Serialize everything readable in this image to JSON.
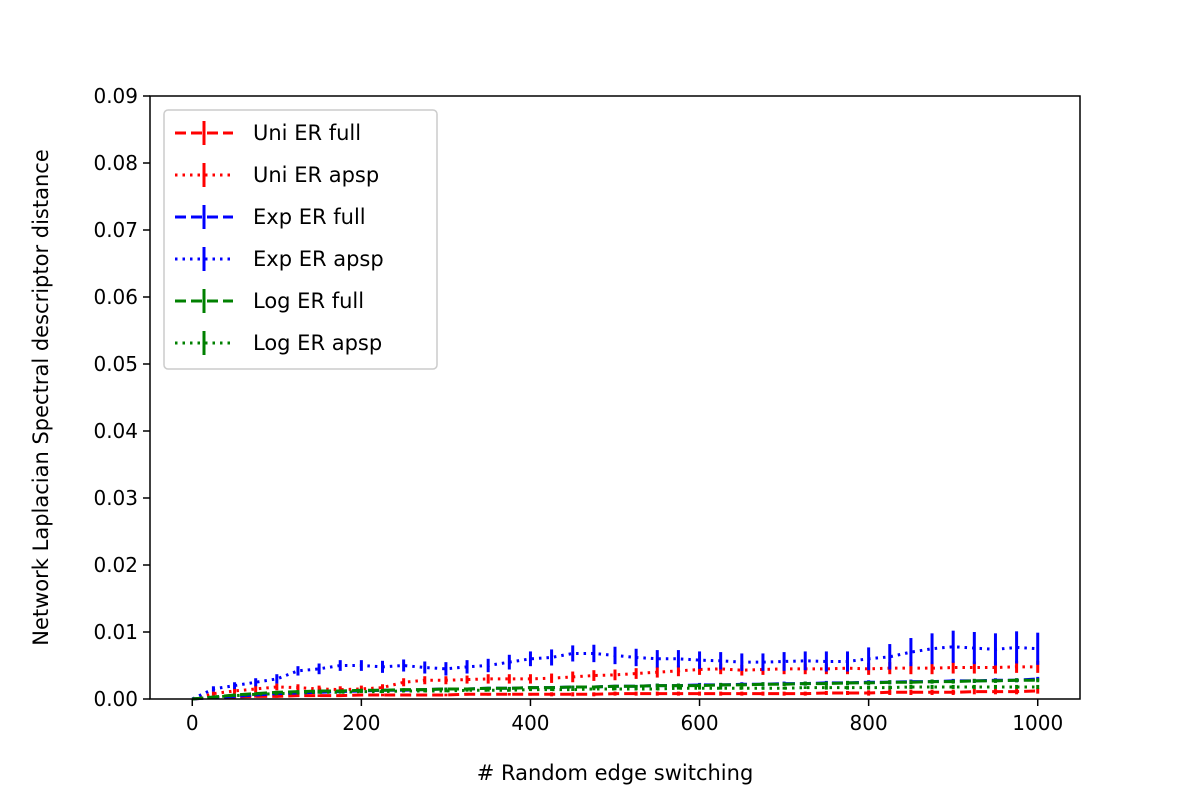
{
  "chart_data": {
    "type": "line",
    "title": "",
    "xlabel": "# Random edge switching",
    "ylabel": "Network Laplacian Spectral descriptor distance",
    "xlim": [
      -50,
      1050
    ],
    "ylim": [
      0,
      0.09
    ],
    "xticks": [
      0,
      200,
      400,
      600,
      800,
      1000
    ],
    "yticks": [
      0.0,
      0.01,
      0.02,
      0.03,
      0.04,
      0.05,
      0.06,
      0.07,
      0.08,
      0.09
    ],
    "xtick_labels": [
      "0",
      "200",
      "400",
      "600",
      "800",
      "1000"
    ],
    "ytick_labels": [
      "0.00",
      "0.01",
      "0.02",
      "0.03",
      "0.04",
      "0.05",
      "0.06",
      "0.07",
      "0.08",
      "0.09"
    ],
    "grid": false,
    "legend_position": "upper-left",
    "x": [
      0,
      25,
      50,
      75,
      100,
      125,
      150,
      175,
      200,
      225,
      250,
      275,
      300,
      325,
      350,
      375,
      400,
      425,
      450,
      475,
      500,
      525,
      550,
      575,
      600,
      625,
      650,
      675,
      700,
      725,
      750,
      775,
      800,
      825,
      850,
      875,
      900,
      925,
      950,
      975,
      1000
    ],
    "series": [
      {
        "name": "Uni ER full",
        "color": "#ff0000",
        "dash": "dashed",
        "values": [
          0.0,
          0.0002,
          0.0003,
          0.0004,
          0.0004,
          0.0005,
          0.0005,
          0.0005,
          0.0006,
          0.0006,
          0.0006,
          0.0006,
          0.0006,
          0.0007,
          0.0007,
          0.0007,
          0.0007,
          0.0007,
          0.0007,
          0.0007,
          0.0008,
          0.0008,
          0.0008,
          0.0008,
          0.0008,
          0.0008,
          0.0008,
          0.0008,
          0.0008,
          0.0008,
          0.0009,
          0.0009,
          0.0009,
          0.001,
          0.001,
          0.001,
          0.001,
          0.0011,
          0.0011,
          0.0011,
          0.0012
        ],
        "errors": [
          0.0,
          0.0001,
          0.0002,
          0.0002,
          0.0002,
          0.0002,
          0.0002,
          0.0002,
          0.0002,
          0.0002,
          0.0002,
          0.0002,
          0.0002,
          0.0002,
          0.0002,
          0.0002,
          0.0002,
          0.0003,
          0.0003,
          0.0003,
          0.0003,
          0.0003,
          0.0003,
          0.0003,
          0.0003,
          0.0003,
          0.0003,
          0.0003,
          0.0003,
          0.0003,
          0.0003,
          0.0003,
          0.0004,
          0.0004,
          0.0004,
          0.0004,
          0.0004,
          0.0004,
          0.0004,
          0.0004,
          0.0004
        ]
      },
      {
        "name": "Uni ER apsp",
        "color": "#ff0000",
        "dash": "dotted",
        "values": [
          0.0,
          0.0008,
          0.0012,
          0.0015,
          0.0018,
          0.0017,
          0.0015,
          0.0014,
          0.0015,
          0.0017,
          0.0025,
          0.0028,
          0.0028,
          0.0029,
          0.003,
          0.003,
          0.003,
          0.0031,
          0.0033,
          0.0035,
          0.0036,
          0.0038,
          0.004,
          0.0042,
          0.0044,
          0.0045,
          0.0043,
          0.0044,
          0.0045,
          0.0045,
          0.0045,
          0.0046,
          0.0045,
          0.0046,
          0.0046,
          0.0046,
          0.0047,
          0.0047,
          0.0047,
          0.0048,
          0.0048
        ],
        "errors": [
          0.0,
          0.0003,
          0.0004,
          0.0005,
          0.0005,
          0.0005,
          0.0005,
          0.0005,
          0.0005,
          0.0005,
          0.0006,
          0.0006,
          0.0006,
          0.0006,
          0.0007,
          0.0007,
          0.0007,
          0.0007,
          0.0008,
          0.0008,
          0.0008,
          0.0008,
          0.0008,
          0.0008,
          0.0008,
          0.0008,
          0.0008,
          0.0008,
          0.0008,
          0.0008,
          0.0008,
          0.0009,
          0.0009,
          0.0009,
          0.0009,
          0.0009,
          0.0009,
          0.0009,
          0.0009,
          0.0009,
          0.0009
        ]
      },
      {
        "name": "Exp ER full",
        "color": "#0000ff",
        "dash": "dashed",
        "values": [
          0.0,
          0.0002,
          0.0004,
          0.0006,
          0.0008,
          0.0009,
          0.001,
          0.0011,
          0.0012,
          0.0013,
          0.0013,
          0.0014,
          0.0015,
          0.0015,
          0.0016,
          0.0016,
          0.0017,
          0.0017,
          0.0018,
          0.0018,
          0.0019,
          0.0019,
          0.002,
          0.002,
          0.0021,
          0.0021,
          0.0022,
          0.0022,
          0.0023,
          0.0023,
          0.0024,
          0.0024,
          0.0025,
          0.0025,
          0.0026,
          0.0026,
          0.0027,
          0.0027,
          0.0028,
          0.0028,
          0.003
        ],
        "errors": [
          0.0,
          0.0001,
          0.0002,
          0.0002,
          0.0002,
          0.0002,
          0.0002,
          0.0002,
          0.0002,
          0.0002,
          0.0002,
          0.0002,
          0.0002,
          0.0002,
          0.0002,
          0.0002,
          0.0002,
          0.0002,
          0.0002,
          0.0002,
          0.0002,
          0.0002,
          0.0003,
          0.0003,
          0.0003,
          0.0003,
          0.0003,
          0.0003,
          0.0003,
          0.0003,
          0.0003,
          0.0003,
          0.0003,
          0.0003,
          0.0003,
          0.0003,
          0.0003,
          0.0003,
          0.0003,
          0.0003,
          0.0003
        ]
      },
      {
        "name": "Exp ER apsp",
        "color": "#0000ff",
        "dash": "dotted",
        "values": [
          0.0,
          0.0015,
          0.002,
          0.0025,
          0.003,
          0.0042,
          0.0045,
          0.005,
          0.005,
          0.0048,
          0.005,
          0.0047,
          0.0045,
          0.0048,
          0.005,
          0.0055,
          0.006,
          0.0062,
          0.0068,
          0.0068,
          0.0065,
          0.0062,
          0.006,
          0.006,
          0.0058,
          0.0057,
          0.0055,
          0.0055,
          0.0056,
          0.0057,
          0.0056,
          0.0056,
          0.006,
          0.0063,
          0.007,
          0.0075,
          0.0078,
          0.0076,
          0.0074,
          0.0077,
          0.0075
        ],
        "errors": [
          0.0,
          0.0004,
          0.0005,
          0.0006,
          0.0007,
          0.0007,
          0.0008,
          0.0008,
          0.0008,
          0.0009,
          0.0009,
          0.0009,
          0.001,
          0.001,
          0.001,
          0.0011,
          0.0011,
          0.0012,
          0.0012,
          0.0013,
          0.0013,
          0.0013,
          0.0013,
          0.0013,
          0.0013,
          0.0013,
          0.0013,
          0.0013,
          0.0014,
          0.0014,
          0.0015,
          0.0015,
          0.0017,
          0.0019,
          0.0021,
          0.0023,
          0.0024,
          0.0024,
          0.0024,
          0.0024,
          0.0024
        ]
      },
      {
        "name": "Log ER full",
        "color": "#008000",
        "dash": "dashed",
        "values": [
          0.0,
          0.0003,
          0.0006,
          0.0008,
          0.001,
          0.0011,
          0.0012,
          0.0012,
          0.0013,
          0.0013,
          0.0014,
          0.0014,
          0.0015,
          0.0015,
          0.0016,
          0.0016,
          0.0017,
          0.0017,
          0.0018,
          0.0018,
          0.0019,
          0.0019,
          0.002,
          0.002,
          0.002,
          0.0021,
          0.0021,
          0.0022,
          0.0022,
          0.0023,
          0.0023,
          0.0024,
          0.0024,
          0.0025,
          0.0025,
          0.0026,
          0.0026,
          0.0027,
          0.0027,
          0.0028,
          0.0028
        ],
        "errors": [
          0.0,
          0.0001,
          0.0002,
          0.0002,
          0.0002,
          0.0002,
          0.0002,
          0.0002,
          0.0002,
          0.0002,
          0.0002,
          0.0002,
          0.0002,
          0.0002,
          0.0002,
          0.0002,
          0.0002,
          0.0002,
          0.0002,
          0.0002,
          0.0002,
          0.0002,
          0.0003,
          0.0003,
          0.0003,
          0.0003,
          0.0003,
          0.0003,
          0.0003,
          0.0003,
          0.0003,
          0.0003,
          0.0003,
          0.0003,
          0.0003,
          0.0003,
          0.0003,
          0.0003,
          0.0003,
          0.0003,
          0.0003
        ]
      },
      {
        "name": "Log ER apsp",
        "color": "#008000",
        "dash": "dotted",
        "values": [
          0.0,
          0.0003,
          0.0005,
          0.0007,
          0.0008,
          0.0009,
          0.001,
          0.001,
          0.0011,
          0.0011,
          0.0012,
          0.0012,
          0.0012,
          0.0013,
          0.0013,
          0.0013,
          0.0014,
          0.0014,
          0.0014,
          0.0015,
          0.0015,
          0.0015,
          0.0015,
          0.0016,
          0.0016,
          0.0016,
          0.0016,
          0.0016,
          0.0016,
          0.0017,
          0.0017,
          0.0017,
          0.0017,
          0.0017,
          0.0018,
          0.0018,
          0.0018,
          0.0018,
          0.0018,
          0.0018,
          0.0018
        ],
        "errors": [
          0.0,
          0.0001,
          0.0002,
          0.0002,
          0.0002,
          0.0002,
          0.0002,
          0.0002,
          0.0002,
          0.0002,
          0.0002,
          0.0002,
          0.0002,
          0.0002,
          0.0002,
          0.0002,
          0.0002,
          0.0002,
          0.0002,
          0.0002,
          0.0002,
          0.0002,
          0.0002,
          0.0002,
          0.0002,
          0.0002,
          0.0002,
          0.0002,
          0.0002,
          0.0002,
          0.0003,
          0.0003,
          0.0003,
          0.0003,
          0.0003,
          0.0003,
          0.0003,
          0.0003,
          0.0003,
          0.0003,
          0.0003
        ]
      }
    ]
  }
}
